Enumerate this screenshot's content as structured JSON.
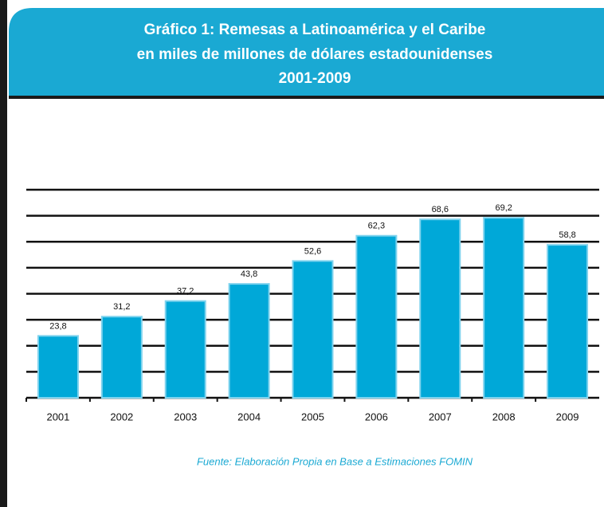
{
  "chart_data": {
    "type": "bar",
    "title": "Gráfico 1: Remesas a Latinoamérica y el Caribe",
    "subtitle": "en miles de millones de dólares estadounidenses",
    "period": "2001-2009",
    "categories": [
      "2001",
      "2002",
      "2003",
      "2004",
      "2005",
      "2006",
      "2007",
      "2008",
      "2009"
    ],
    "values": [
      23.8,
      31.2,
      37.2,
      43.8,
      52.6,
      62.3,
      68.6,
      69.2,
      58.8
    ],
    "value_labels": [
      "23,8",
      "31,2",
      "37,2",
      "43,8",
      "52,6",
      "62,3",
      "68,6",
      "69,2",
      "58,8"
    ],
    "color": "#00a8d8",
    "ylim": [
      0,
      80
    ],
    "yticks": [
      0,
      10,
      20,
      30,
      40,
      50,
      60,
      70,
      80
    ],
    "grid": true,
    "source": "Fuente: Elaboración Propia en Base a Estimaciones FOMIN"
  }
}
